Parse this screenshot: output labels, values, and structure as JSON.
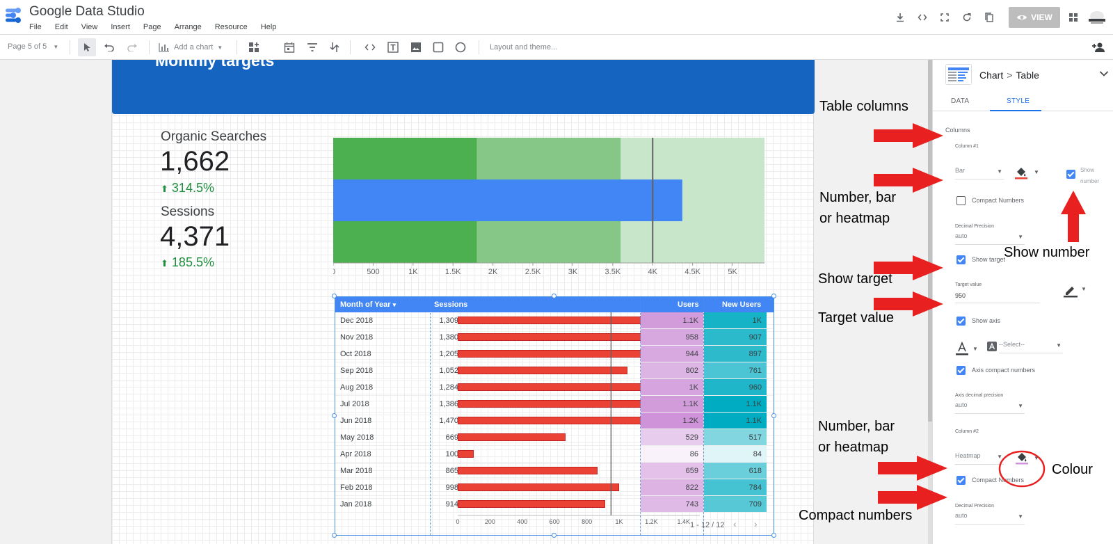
{
  "app": {
    "title": "Google Data Studio"
  },
  "menu": [
    "File",
    "Edit",
    "View",
    "Insert",
    "Page",
    "Arrange",
    "Resource",
    "Help"
  ],
  "header_actions": {
    "view_label": "VIEW"
  },
  "toolbar": {
    "page_indicator": "Page 5 of 5",
    "add_chart": "Add a chart",
    "layout_theme": "Layout and theme..."
  },
  "report": {
    "banner_title": "Monthly targets",
    "kpis": [
      {
        "label": "Organic Searches",
        "value": "1,662",
        "delta": "314.5%"
      },
      {
        "label": "Sessions",
        "value": "4,371",
        "delta": "185.5%"
      }
    ]
  },
  "chart_data": [
    {
      "type": "bar",
      "subtype": "bullet",
      "ranges": [
        1800,
        3600,
        5400
      ],
      "range_colors": [
        "#4caf50",
        "#86c787",
        "#c8e6c9"
      ],
      "value": 4371,
      "target": 4000,
      "bar_color": "#4285f4",
      "x_ticks": [
        "0",
        "500",
        "1K",
        "1.5K",
        "2K",
        "2.5K",
        "3K",
        "3.5K",
        "4K",
        "4.5K",
        "5K"
      ],
      "xlim": [
        0,
        5400
      ]
    },
    {
      "type": "table",
      "columns": [
        "Month of Year",
        "Sessions",
        "Users",
        "New Users"
      ],
      "sort_indicator": "▾",
      "rows": [
        {
          "month": "Dec 2018",
          "sessions": 1309,
          "sessions_label": "1,309",
          "users": 1100,
          "users_label": "1.1K",
          "new_users": 1000,
          "new_users_label": "1K"
        },
        {
          "month": "Nov 2018",
          "sessions": 1380,
          "sessions_label": "1,380",
          "users": 958,
          "users_label": "958",
          "new_users": 907,
          "new_users_label": "907"
        },
        {
          "month": "Oct 2018",
          "sessions": 1205,
          "sessions_label": "1,205",
          "users": 944,
          "users_label": "944",
          "new_users": 897,
          "new_users_label": "897"
        },
        {
          "month": "Sep 2018",
          "sessions": 1052,
          "sessions_label": "1,052",
          "users": 802,
          "users_label": "802",
          "new_users": 761,
          "new_users_label": "761"
        },
        {
          "month": "Aug 2018",
          "sessions": 1284,
          "sessions_label": "1,284",
          "users": 1000,
          "users_label": "1K",
          "new_users": 960,
          "new_users_label": "960"
        },
        {
          "month": "Jul 2018",
          "sessions": 1386,
          "sessions_label": "1,386",
          "users": 1100,
          "users_label": "1.1K",
          "new_users": 1100,
          "new_users_label": "1.1K"
        },
        {
          "month": "Jun 2018",
          "sessions": 1470,
          "sessions_label": "1,470",
          "users": 1200,
          "users_label": "1.2K",
          "new_users": 1100,
          "new_users_label": "1.1K"
        },
        {
          "month": "May 2018",
          "sessions": 669,
          "sessions_label": "669",
          "users": 529,
          "users_label": "529",
          "new_users": 517,
          "new_users_label": "517"
        },
        {
          "month": "Apr 2018",
          "sessions": 100,
          "sessions_label": "100",
          "users": 86,
          "users_label": "86",
          "new_users": 84,
          "new_users_label": "84"
        },
        {
          "month": "Mar 2018",
          "sessions": 865,
          "sessions_label": "865",
          "users": 659,
          "users_label": "659",
          "new_users": 618,
          "new_users_label": "618"
        },
        {
          "month": "Feb 2018",
          "sessions": 998,
          "sessions_label": "998",
          "users": 822,
          "users_label": "822",
          "new_users": 784,
          "new_users_label": "784"
        },
        {
          "month": "Jan 2018",
          "sessions": 914,
          "sessions_label": "914",
          "users": 743,
          "users_label": "743",
          "new_users": 709,
          "new_users_label": "709"
        }
      ],
      "sessions_target": 950,
      "sessions_axis_max": 1500,
      "sessions_axis_ticks": [
        "0",
        "200",
        "400",
        "600",
        "800",
        "1K",
        "1.2K",
        "1.4K"
      ],
      "sessions_axis_values": [
        0,
        200,
        400,
        600,
        800,
        1000,
        1200,
        1400
      ],
      "bar_color": "#ea4335",
      "users_heat_color": "#ce93d8",
      "new_users_heat_color": "#00acc1",
      "pagination": "1 - 12 / 12"
    }
  ],
  "panel": {
    "breadcrumb_chart": "Chart",
    "breadcrumb_sep": ">",
    "breadcrumb_type": "Table",
    "tabs": [
      "DATA",
      "STYLE"
    ],
    "columns_header": "Columns",
    "column1": {
      "title": "Column #1",
      "display": "Bar",
      "show_number": "Show number",
      "compact_numbers": "Compact Numbers",
      "decimal_precision_label": "Decimal Precision",
      "decimal_precision": "auto",
      "show_target": "Show target",
      "target_value_label": "Target value",
      "target_value": "950",
      "show_axis": "Show axis",
      "font_select": "--Select--",
      "axis_compact_numbers": "Axis compact numbers",
      "axis_decimal_precision_label": "Axis decimal precision",
      "axis_decimal_precision": "auto"
    },
    "column2": {
      "title": "Column #2",
      "display": "Heatmap",
      "compact_numbers": "Compact Numbers",
      "decimal_precision_label": "Decimal Precision",
      "decimal_precision": "auto"
    }
  },
  "annotations": {
    "table_columns": "Table columns",
    "number_bar_heatmap_1a": "Number, bar",
    "number_bar_heatmap_1b": "or heatmap",
    "show_number": "Show number",
    "show_target": "Show target",
    "target_value": "Target value",
    "number_bar_heatmap_2a": "Number, bar",
    "number_bar_heatmap_2b": "or heatmap",
    "colour": "Colour",
    "compact_numbers": "Compact numbers"
  },
  "colors": {
    "accent": "#1a73e8",
    "banner": "#1565c0",
    "arrow": "#e8201f",
    "delta_up": "#1e8e3e"
  }
}
